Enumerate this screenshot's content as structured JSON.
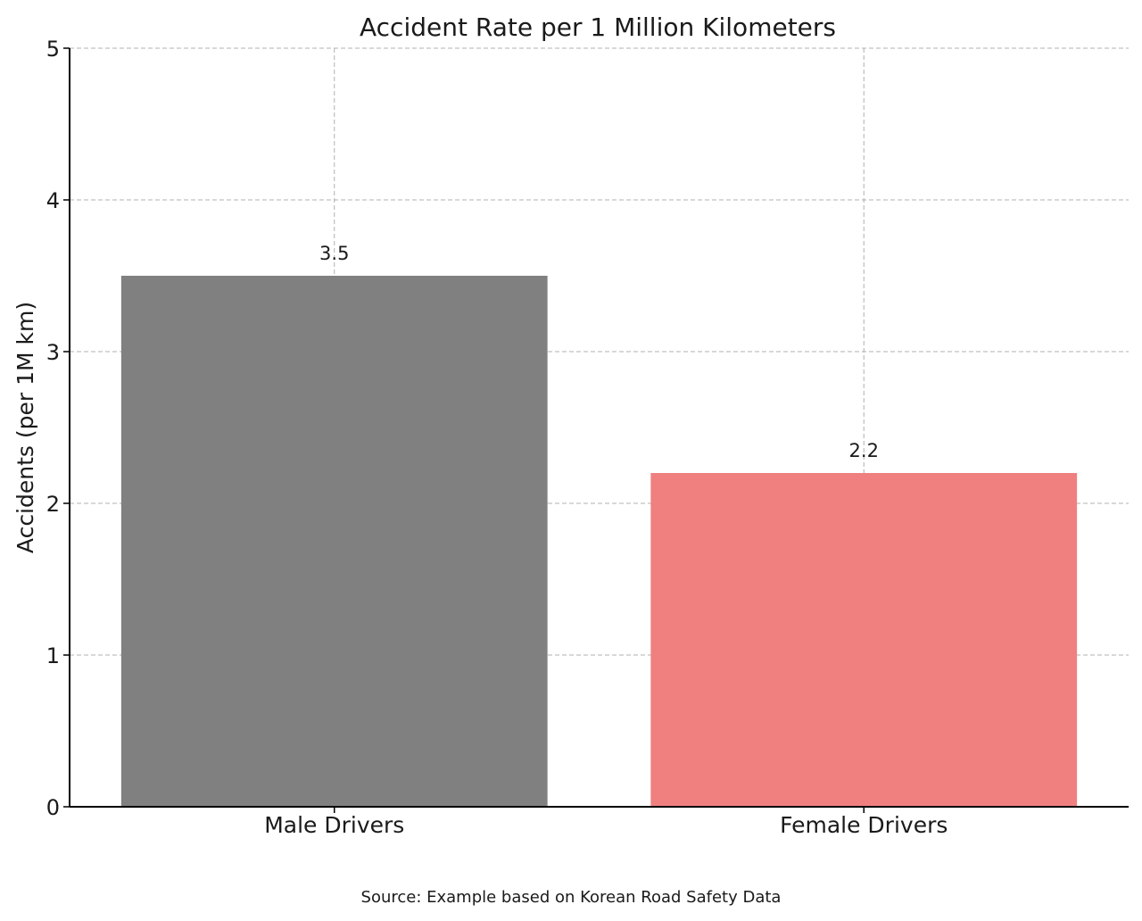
{
  "chart_data": {
    "type": "bar",
    "title": "Accident Rate per 1 Million Kilometers",
    "xlabel": "",
    "ylabel": "Accidents (per 1M km)",
    "categories": [
      "Male Drivers",
      "Female Drivers"
    ],
    "values": [
      3.5,
      2.2
    ],
    "data_labels": [
      "3.5",
      "2.2"
    ],
    "colors": [
      "#808080",
      "#f08080"
    ],
    "ylim": [
      0,
      5
    ],
    "yticks": [
      0,
      1,
      2,
      3,
      4,
      5
    ],
    "ytick_labels": [
      "0",
      "1",
      "2",
      "3",
      "4",
      "5"
    ],
    "grid": true,
    "legend": "none"
  },
  "source_note": "Source: Example based on Korean Road Safety Data"
}
